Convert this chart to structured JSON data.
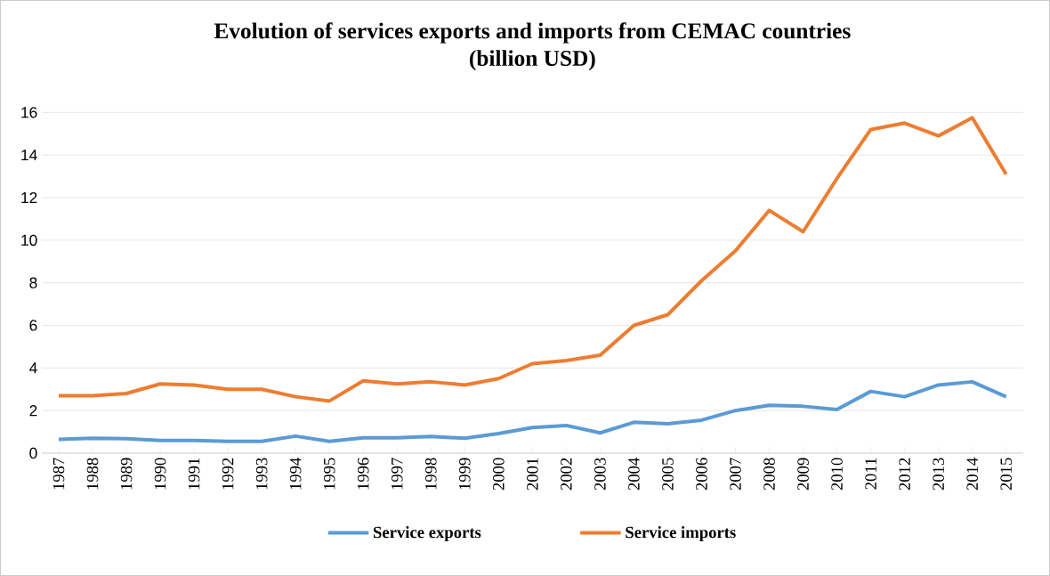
{
  "chart_data": {
    "type": "line",
    "title": "Evolution of services  exports and imports from CEMAC countries",
    "subtitle": "(billion USD)",
    "categories": [
      "1987",
      "1988",
      "1989",
      "1990",
      "1991",
      "1992",
      "1993",
      "1994",
      "1995",
      "1996",
      "1997",
      "1998",
      "1999",
      "2000",
      "2001",
      "2002",
      "2003",
      "2004",
      "2005",
      "2006",
      "2007",
      "2008",
      "2009",
      "2010",
      "2011",
      "2012",
      "2013",
      "2014",
      "2015"
    ],
    "series": [
      {
        "name": "Service exports",
        "color": "#5b9bd5",
        "values": [
          0.65,
          0.7,
          0.68,
          0.6,
          0.6,
          0.55,
          0.55,
          0.8,
          0.55,
          0.72,
          0.72,
          0.78,
          0.7,
          0.92,
          1.2,
          1.3,
          0.95,
          1.45,
          1.38,
          1.55,
          2.0,
          2.25,
          2.2,
          2.05,
          2.9,
          2.65,
          3.2,
          3.35,
          2.65
        ]
      },
      {
        "name": "Service imports",
        "color": "#ed7d31",
        "values": [
          2.7,
          2.7,
          2.8,
          3.25,
          3.2,
          3.0,
          3.0,
          2.65,
          2.45,
          3.4,
          3.25,
          3.35,
          3.2,
          3.5,
          4.2,
          4.35,
          4.6,
          6.0,
          6.5,
          8.1,
          9.5,
          11.4,
          10.4,
          12.9,
          15.2,
          15.5,
          14.9,
          15.75,
          13.1
        ]
      }
    ],
    "ylim": [
      0,
      16
    ],
    "yticks": [
      0,
      2,
      4,
      6,
      8,
      10,
      12,
      14,
      16
    ],
    "grid": "y",
    "legend": "bottom",
    "line_style": "solid"
  }
}
